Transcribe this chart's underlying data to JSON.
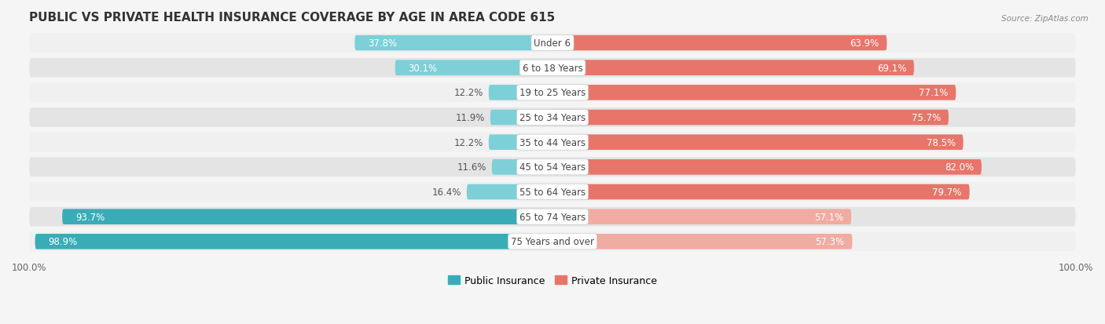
{
  "title": "PUBLIC VS PRIVATE HEALTH INSURANCE COVERAGE BY AGE IN AREA CODE 615",
  "source": "Source: ZipAtlas.com",
  "categories": [
    "Under 6",
    "6 to 18 Years",
    "19 to 25 Years",
    "25 to 34 Years",
    "35 to 44 Years",
    "45 to 54 Years",
    "55 to 64 Years",
    "65 to 74 Years",
    "75 Years and over"
  ],
  "public_values": [
    37.8,
    30.1,
    12.2,
    11.9,
    12.2,
    11.6,
    16.4,
    93.7,
    98.9
  ],
  "private_values": [
    63.9,
    69.1,
    77.1,
    75.7,
    78.5,
    82.0,
    79.7,
    57.1,
    57.3
  ],
  "public_color_strong": "#3AACB8",
  "public_color_light": "#7DD0D8",
  "private_color_strong": "#E8756A",
  "private_color_light": "#F0ABA3",
  "row_bg_odd": "#F0F0F0",
  "row_bg_even": "#E4E4E4",
  "fig_bg": "#F5F5F5",
  "max_value": 100.0,
  "bar_height": 0.62,
  "title_fontsize": 11,
  "label_fontsize": 8.5,
  "tick_fontsize": 8.5,
  "legend_fontsize": 9
}
